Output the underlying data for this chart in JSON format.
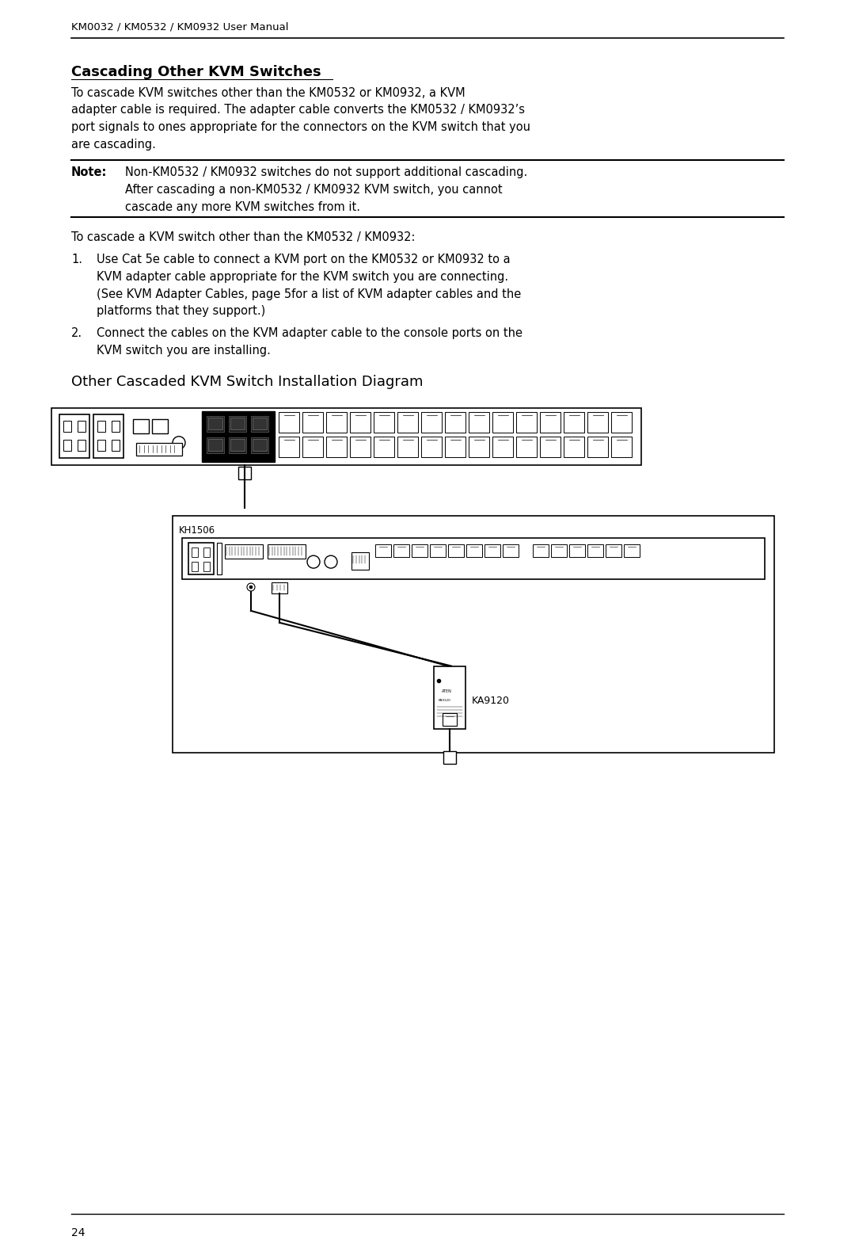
{
  "header_text": "KM0032 / KM0532 / KM0932 User Manual",
  "page_number": "24",
  "section_title": "Cascading Other KVM Switches",
  "body_lines": [
    "To cascade KVM switches other than the KM0532 or KM0932, a KVM",
    "adapter cable is required. The adapter cable converts the KM0532 / KM0932’s",
    "port signals to ones appropriate for the connectors on the KVM switch that you",
    "are cascading."
  ],
  "note_label": "Note:",
  "note_lines": [
    "Non-KM0532 / KM0932 switches do not support additional cascading.",
    "After cascading a non-KM0532 / KM0932 KVM switch, you cannot",
    "cascade any more KVM switches from it."
  ],
  "intro_line": "To cascade a KVM switch other than the KM0532 / KM0932:",
  "step1_lines": [
    "Use Cat 5e cable to connect a KVM port on the KM0532 or KM0932 to a",
    "KVM adapter cable appropriate for the KVM switch you are connecting.",
    "(See KVM Adapter Cables, page 5for a list of KVM adapter cables and the",
    "platforms that they support.)"
  ],
  "step2_lines": [
    "Connect the cables on the KVM adapter cable to the console ports on the",
    "KVM switch you are installing."
  ],
  "diagram_title": "Other Cascaded KVM Switch Installation Diagram",
  "kh1506_label": "KH1506",
  "ka9120_label": "KA9120",
  "bg_color": "#ffffff",
  "text_color": "#000000"
}
